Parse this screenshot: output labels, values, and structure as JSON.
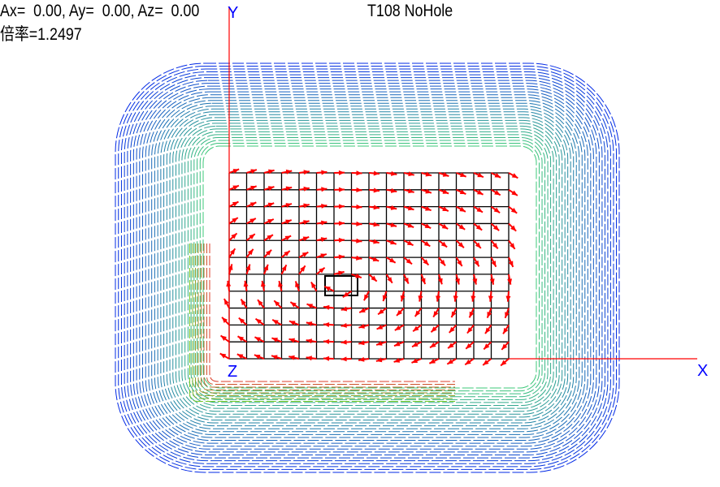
{
  "header": {
    "rotation": "Ax=  0.00, Ay=  0.00, Az=  0.00",
    "model": "T108 NoHole",
    "scale": "倍率=1.2497"
  },
  "axes": {
    "x": "X",
    "y": "Y",
    "z": "Z"
  }
}
